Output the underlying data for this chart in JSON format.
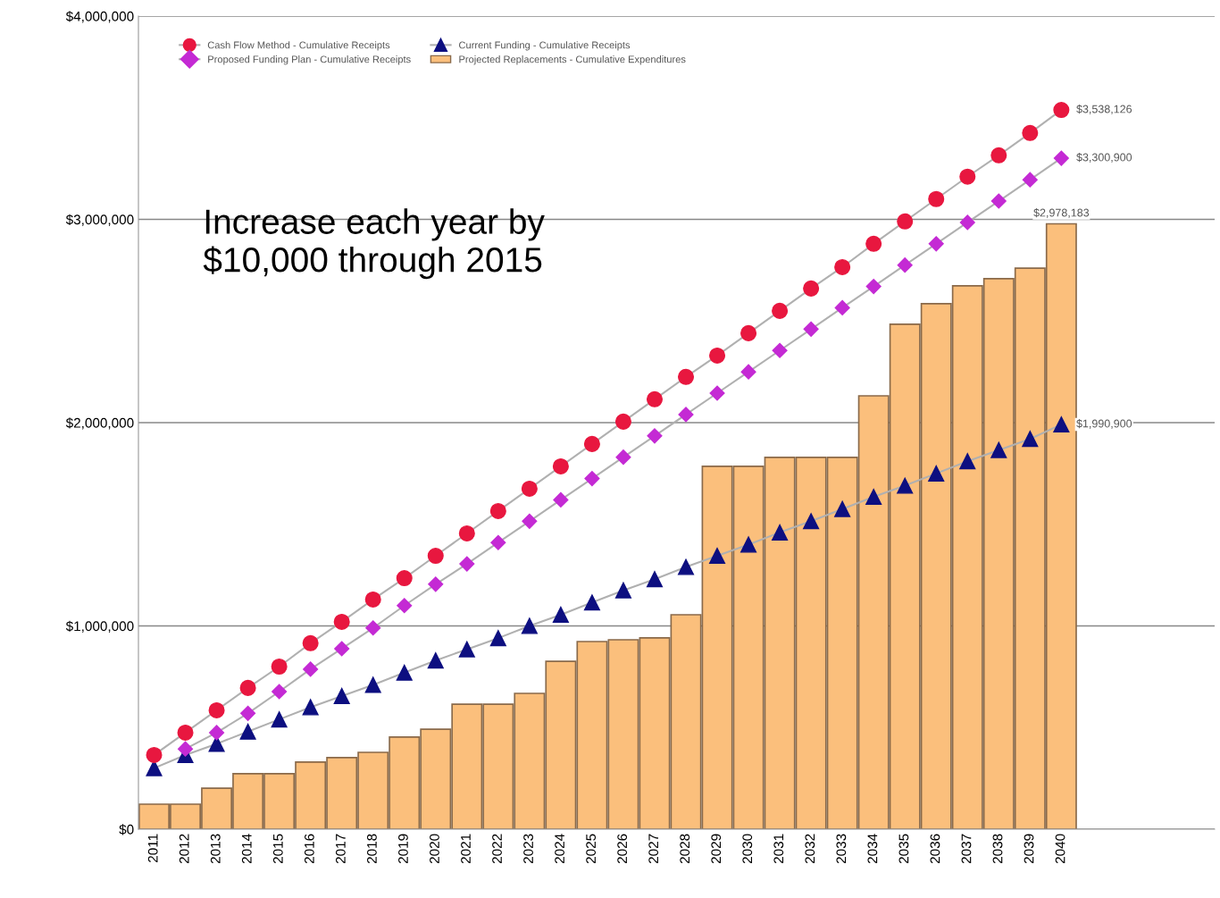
{
  "chart_data": {
    "type": "bar",
    "categories": [
      "2011",
      "2012",
      "2013",
      "2014",
      "2015",
      "2016",
      "2017",
      "2018",
      "2019",
      "2020",
      "2021",
      "2022",
      "2023",
      "2024",
      "2025",
      "2026",
      "2027",
      "2028",
      "2029",
      "2030",
      "2031",
      "2032",
      "2033",
      "2034",
      "2035",
      "2036",
      "2037",
      "2038",
      "2039",
      "2040"
    ],
    "series": [
      {
        "name": "Projected Replacements - Cumulative Expenditures",
        "color": "#fbbf7c",
        "values": [
          123000,
          123000,
          202000,
          273000,
          273000,
          330000,
          352000,
          378000,
          453000,
          492000,
          615000,
          615000,
          668000,
          826000,
          923000,
          932000,
          941000,
          1055000,
          1785000,
          1785000,
          1829000,
          1829000,
          1829000,
          2132000,
          2484000,
          2585000,
          2673000,
          2708000,
          2760000,
          2978183
        ],
        "value_labels": [
          null,
          null,
          null,
          null,
          null,
          null,
          null,
          null,
          null,
          null,
          null,
          null,
          null,
          null,
          null,
          null,
          null,
          null,
          null,
          null,
          null,
          null,
          null,
          null,
          null,
          null,
          null,
          null,
          null,
          "$2,978,183"
        ]
      },
      {
        "name": "Cash Flow Method - Cumulative Receipts",
        "type": "line",
        "marker": "circle",
        "color": "#e8173f",
        "values": [
          365000,
          475000,
          585000,
          695000,
          800000,
          915000,
          1020000,
          1130000,
          1235000,
          1345000,
          1455000,
          1565000,
          1675000,
          1785000,
          1895000,
          2005000,
          2115000,
          2225000,
          2330000,
          2440000,
          2550000,
          2660000,
          2765000,
          2880000,
          2990000,
          3100000,
          3210000,
          3315000,
          3425000,
          3538126
        ],
        "value_labels": [
          null,
          null,
          null,
          null,
          null,
          null,
          null,
          null,
          null,
          null,
          null,
          null,
          null,
          null,
          null,
          null,
          null,
          null,
          null,
          null,
          null,
          null,
          null,
          null,
          null,
          null,
          null,
          null,
          null,
          "$3,538,126"
        ]
      },
      {
        "name": "Proposed Funding Plan - Cumulative Receipts",
        "type": "line",
        "marker": "diamond",
        "color": "#c42ad4",
        "values": [
          null,
          395000,
          475000,
          570000,
          677000,
          787000,
          888000,
          990000,
          1100000,
          1205000,
          1305000,
          1410000,
          1515000,
          1620000,
          1725000,
          1830000,
          1935000,
          2040000,
          2145000,
          2250000,
          2355000,
          2460000,
          2565000,
          2670000,
          2775000,
          2880000,
          2985000,
          3090000,
          3195000,
          3300900
        ],
        "value_labels": [
          null,
          null,
          null,
          null,
          null,
          null,
          null,
          null,
          null,
          null,
          null,
          null,
          null,
          null,
          null,
          null,
          null,
          null,
          null,
          null,
          null,
          null,
          null,
          null,
          null,
          null,
          null,
          null,
          null,
          "$3,300,900"
        ]
      },
      {
        "name": "Current Funding - Cumulative Receipts",
        "type": "line",
        "marker": "triangle",
        "color": "#0d0f80",
        "values": [
          300000,
          365000,
          420000,
          480000,
          540000,
          600000,
          655000,
          710000,
          770000,
          830000,
          885000,
          940000,
          1000000,
          1055000,
          1115000,
          1175000,
          1230000,
          1290000,
          1345000,
          1400000,
          1460000,
          1515000,
          1575000,
          1635000,
          1690000,
          1750000,
          1810000,
          1865000,
          1920000,
          1990900
        ],
        "value_labels": [
          null,
          null,
          null,
          null,
          null,
          null,
          null,
          null,
          null,
          null,
          null,
          null,
          null,
          null,
          null,
          null,
          null,
          null,
          null,
          null,
          null,
          null,
          null,
          null,
          null,
          null,
          null,
          null,
          null,
          "$1,990,900"
        ]
      }
    ],
    "ylim": [
      0,
      4000000
    ],
    "yticks": [
      {
        "value": 0,
        "label": "$0"
      },
      {
        "value": 1000000,
        "label": "$1,000,000"
      },
      {
        "value": 2000000,
        "label": "$2,000,000"
      },
      {
        "value": 3000000,
        "label": "$3,000,000"
      },
      {
        "value": 4000000,
        "label": "$4,000,000"
      }
    ],
    "grid": "y",
    "legend": "top left",
    "annotations": [
      "Increase each year by\n$10,000 through 2015"
    ]
  }
}
